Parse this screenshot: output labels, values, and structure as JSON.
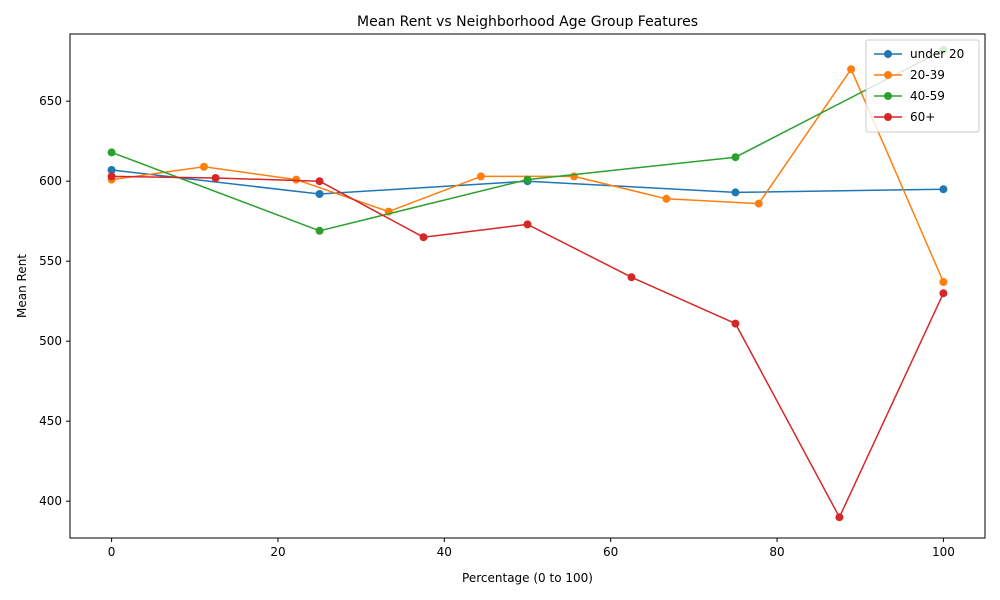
{
  "chart_data": {
    "type": "line",
    "title": "Mean Rent vs Neighborhood Age Group Features",
    "xlabel": "Percentage (0 to 100)",
    "ylabel": "Mean Rent",
    "xlim": [
      -5,
      105
    ],
    "ylim": [
      377,
      692
    ],
    "xticks": [
      0,
      20,
      40,
      60,
      80,
      100
    ],
    "yticks": [
      400,
      450,
      500,
      550,
      600,
      650
    ],
    "grid": false,
    "legend_position": "top-right",
    "series": [
      {
        "name": "under 20",
        "color": "#1f77b4",
        "x": [
          0,
          25,
          50,
          75,
          100
        ],
        "y": [
          607,
          592,
          600,
          593,
          595
        ]
      },
      {
        "name": "20-39",
        "color": "#ff7f0e",
        "x": [
          0,
          11.1,
          22.2,
          33.3,
          44.4,
          55.6,
          66.7,
          77.8,
          88.9,
          100
        ],
        "y": [
          601,
          609,
          601,
          581,
          603,
          603,
          589,
          586,
          670,
          537
        ]
      },
      {
        "name": "40-59",
        "color": "#2ca02c",
        "x": [
          0,
          25,
          50,
          75,
          100
        ],
        "y": [
          618,
          569,
          601,
          615,
          682
        ]
      },
      {
        "name": "60+",
        "color": "#d62728",
        "x": [
          0,
          12.5,
          25,
          37.5,
          50,
          62.5,
          75,
          87.5,
          100
        ],
        "y": [
          603,
          602,
          600,
          565,
          573,
          540,
          511,
          390,
          530
        ]
      }
    ]
  }
}
